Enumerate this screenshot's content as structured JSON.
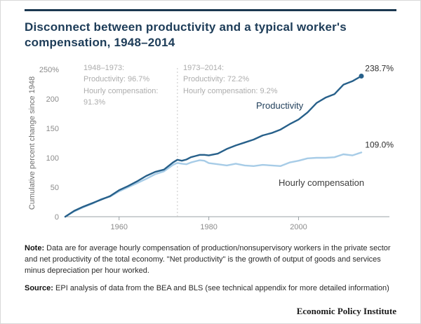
{
  "page": {
    "title": "Disconnect between productivity and a typical worker's compensation, 1948–2014"
  },
  "chart_data": {
    "type": "line",
    "title": "Disconnect between productivity and a typical worker's compensation, 1948–2014",
    "xlabel": "",
    "ylabel": "Cumulative percent change since 1948",
    "xlim": [
      1948,
      2014
    ],
    "ylim": [
      0,
      250
    ],
    "grid": false,
    "legend_position": "inline-labels",
    "divider_year": 1973,
    "yticks": [
      {
        "v": 0,
        "label": "0"
      },
      {
        "v": 50,
        "label": "50"
      },
      {
        "v": 100,
        "label": "100"
      },
      {
        "v": 150,
        "label": "150"
      },
      {
        "v": 200,
        "label": "200"
      },
      {
        "v": 250,
        "label": "250%"
      }
    ],
    "xticks": [
      {
        "v": 1960,
        "label": "1960"
      },
      {
        "v": 1980,
        "label": "1980"
      },
      {
        "v": 2000,
        "label": "2000"
      }
    ],
    "years": [
      1948,
      1950,
      1952,
      1954,
      1956,
      1958,
      1960,
      1962,
      1964,
      1966,
      1968,
      1970,
      1972,
      1973,
      1974,
      1975,
      1976,
      1977,
      1978,
      1979,
      1980,
      1982,
      1984,
      1986,
      1988,
      1990,
      1992,
      1994,
      1996,
      1998,
      2000,
      2002,
      2004,
      2006,
      2008,
      2010,
      2012,
      2014
    ],
    "series": [
      {
        "name": "Productivity",
        "color": "#27608a",
        "end_label": "238.7%",
        "end_dot": true,
        "values": [
          0,
          10,
          17,
          23,
          29,
          35,
          45,
          52,
          60,
          69,
          76,
          80,
          92,
          96.7,
          95,
          97,
          101,
          103,
          105,
          105,
          104,
          107,
          115,
          121,
          126,
          131,
          138,
          142,
          148,
          157,
          165,
          177,
          193,
          202,
          208,
          224,
          230,
          238.7
        ]
      },
      {
        "name": "Hourly compensation",
        "color": "#a7cce7",
        "end_label": "109.0%",
        "end_dot": false,
        "values": [
          0,
          9,
          16,
          22,
          30,
          34,
          43,
          50,
          57,
          64,
          72,
          77,
          88,
          91.3,
          90,
          89,
          92,
          94,
          96,
          95,
          91,
          89,
          87,
          90,
          87,
          86,
          88,
          87,
          86,
          92,
          95,
          99,
          100,
          100,
          101,
          106,
          104,
          109
        ]
      }
    ],
    "annotations": {
      "period1": {
        "line1": "1948–1973:",
        "line2": "Productivity: 96.7%",
        "line3": "Hourly compensation:",
        "line4": "91.3%"
      },
      "period2": {
        "line1": "1973–2014:",
        "line2": "Productivity: 72.2%",
        "line3": "Hourly compensation: 9.2%"
      }
    }
  },
  "footer": {
    "note_label": "Note:",
    "note_text": "Data are for average hourly compensation of production/nonsupervisory workers in the private sector and net productivity of the total economy. \"Net productivity\" is the growth of output of goods and services minus depreciation per hour worked.",
    "source_label": "Source:",
    "source_text": "EPI analysis of data from the BEA and BLS (see technical appendix for more detailed information)",
    "brand": "Economic Policy Institute"
  }
}
